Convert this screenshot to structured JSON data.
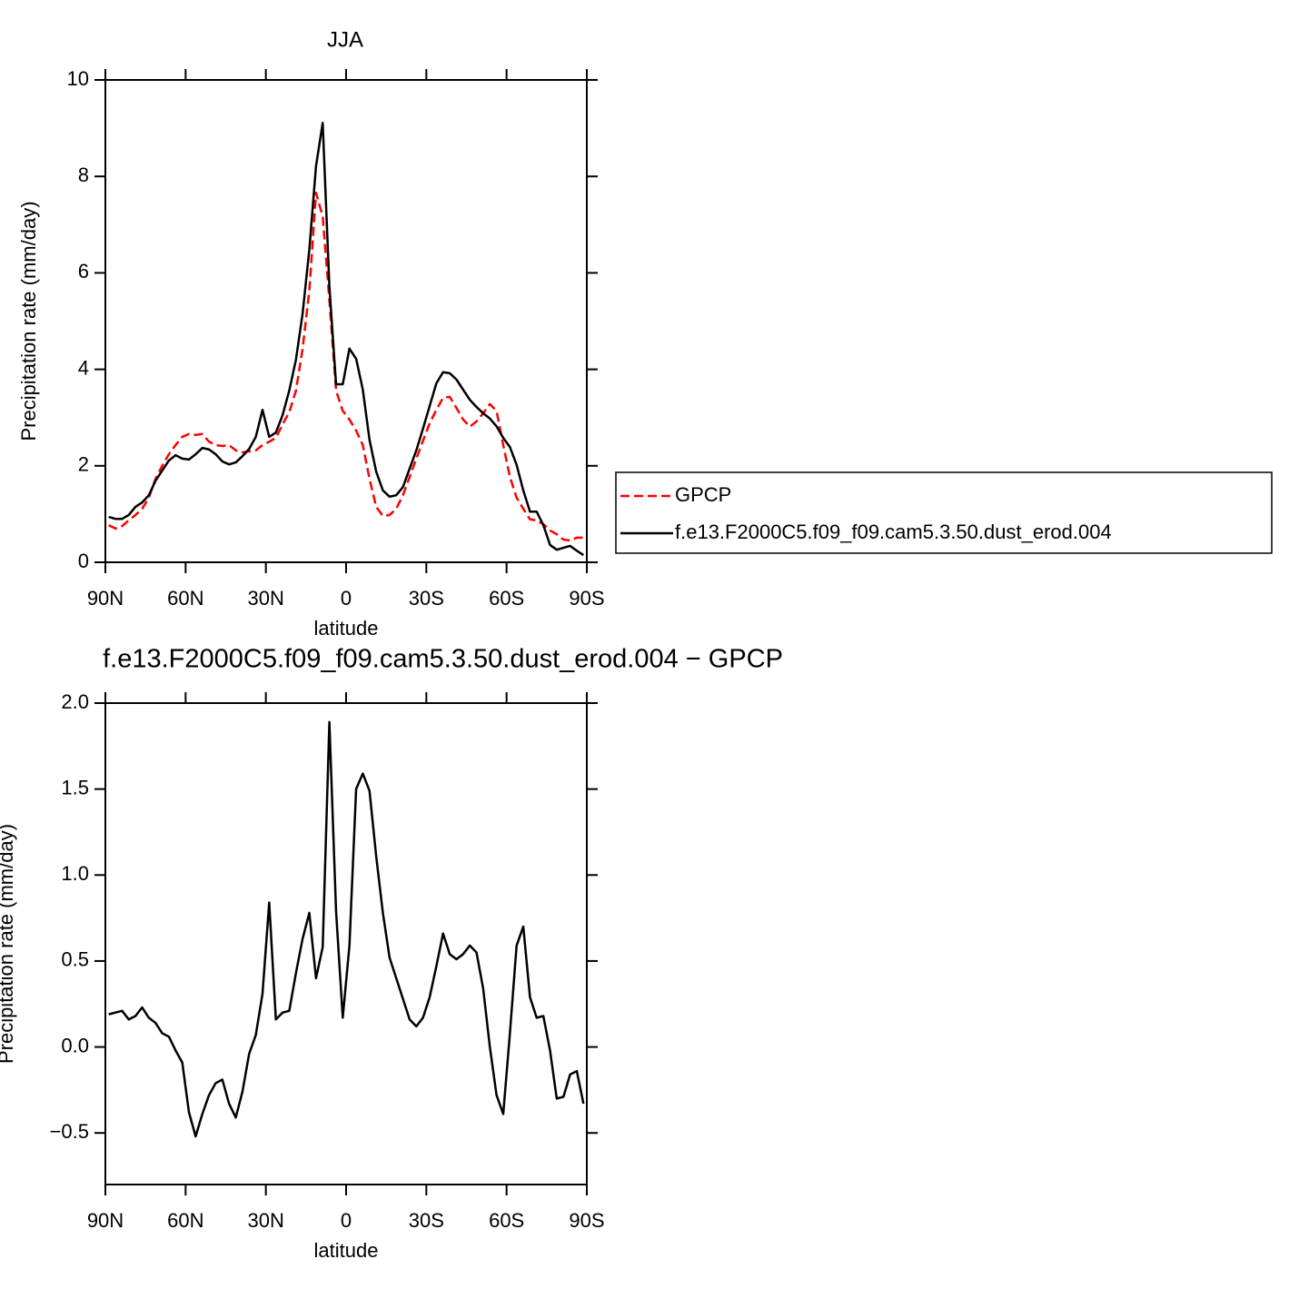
{
  "chart_data": [
    {
      "type": "line",
      "title": "JJA",
      "ylabel": "Precipitation rate (mm/day)",
      "xlabel": "latitude",
      "x": [
        88.75,
        86.25,
        83.75,
        81.25,
        78.75,
        76.25,
        73.75,
        71.25,
        68.75,
        66.25,
        63.75,
        61.25,
        58.75,
        56.25,
        53.75,
        51.25,
        48.75,
        46.25,
        43.75,
        41.25,
        38.75,
        36.25,
        33.75,
        31.25,
        28.75,
        26.25,
        23.75,
        21.25,
        18.75,
        16.25,
        13.75,
        11.25,
        8.75,
        6.25,
        3.75,
        1.25,
        -1.25,
        -3.75,
        -6.25,
        -8.75,
        -11.25,
        -13.75,
        -16.25,
        -18.75,
        -21.25,
        -23.75,
        -26.25,
        -28.75,
        -31.25,
        -33.75,
        -36.25,
        -38.75,
        -41.25,
        -43.75,
        -46.25,
        -48.75,
        -51.25,
        -53.75,
        -56.25,
        -58.75,
        -61.25,
        -63.75,
        -66.25,
        -68.75,
        -71.25,
        -73.75,
        -76.25,
        -78.75,
        -81.25,
        -83.75,
        -86.25,
        -88.75
      ],
      "xlim": [
        90,
        -90
      ],
      "xticks": [
        {
          "value": 90,
          "label": "90N"
        },
        {
          "value": 60,
          "label": "60N"
        },
        {
          "value": 30,
          "label": "30N"
        },
        0,
        {
          "value": -30,
          "label": "30S"
        },
        {
          "value": -60,
          "label": "60S"
        },
        {
          "value": -90,
          "label": "90S"
        }
      ],
      "ylim": [
        0,
        10
      ],
      "yticks": [
        0,
        2,
        4,
        6,
        8,
        10
      ],
      "legend": "right",
      "series": [
        {
          "name": "GPCP",
          "color": "#ff0000",
          "linestyle": "dashed",
          "values": [
            0.77,
            0.7,
            0.75,
            0.87,
            0.98,
            1.11,
            1.34,
            1.73,
            2.0,
            2.24,
            2.43,
            2.6,
            2.66,
            2.64,
            2.66,
            2.5,
            2.43,
            2.41,
            2.43,
            2.32,
            2.28,
            2.3,
            2.32,
            2.43,
            2.5,
            2.58,
            2.86,
            3.11,
            3.56,
            4.43,
            5.63,
            7.66,
            7.17,
            5.44,
            3.56,
            3.14,
            2.96,
            2.73,
            2.43,
            1.73,
            1.15,
            0.96,
            0.98,
            1.11,
            1.39,
            1.77,
            2.15,
            2.52,
            2.88,
            3.16,
            3.41,
            3.43,
            3.2,
            2.96,
            2.81,
            2.92,
            3.09,
            3.28,
            3.14,
            2.43,
            1.77,
            1.34,
            1.11,
            0.89,
            0.87,
            0.79,
            0.66,
            0.58,
            0.47,
            0.45,
            0.51,
            0.51
          ]
        },
        {
          "name": "f.e13.F2000C5.f09_f09.cam5.3.50.dust_erod.004",
          "color": "#000000",
          "linestyle": "solid",
          "values": [
            0.94,
            0.9,
            0.9,
            0.98,
            1.15,
            1.24,
            1.39,
            1.69,
            1.9,
            2.11,
            2.22,
            2.15,
            2.13,
            2.24,
            2.37,
            2.34,
            2.24,
            2.09,
            2.03,
            2.07,
            2.2,
            2.35,
            2.6,
            3.16,
            2.6,
            2.69,
            3.05,
            3.56,
            4.2,
            5.16,
            6.48,
            8.21,
            9.11,
            5.72,
            3.69,
            3.69,
            4.43,
            4.22,
            3.58,
            2.54,
            1.88,
            1.49,
            1.36,
            1.39,
            1.56,
            1.94,
            2.32,
            2.77,
            3.24,
            3.71,
            3.94,
            3.92,
            3.79,
            3.58,
            3.37,
            3.22,
            3.09,
            2.98,
            2.82,
            2.58,
            2.39,
            2.02,
            1.49,
            1.05,
            1.05,
            0.77,
            0.36,
            0.26,
            0.3,
            0.34,
            0.24,
            0.15
          ]
        }
      ]
    },
    {
      "type": "line",
      "title": "f.e13.F2000C5.f09_f09.cam5.3.50.dust_erod.004 − GPCP",
      "ylabel": "Precipitation rate (mm/day)",
      "xlabel": "latitude",
      "x": [
        88.75,
        86.25,
        83.75,
        81.25,
        78.75,
        76.25,
        73.75,
        71.25,
        68.75,
        66.25,
        63.75,
        61.25,
        58.75,
        56.25,
        53.75,
        51.25,
        48.75,
        46.25,
        43.75,
        41.25,
        38.75,
        36.25,
        33.75,
        31.25,
        28.75,
        26.25,
        23.75,
        21.25,
        18.75,
        16.25,
        13.75,
        11.25,
        8.75,
        6.25,
        3.75,
        1.25,
        -1.25,
        -3.75,
        -6.25,
        -8.75,
        -11.25,
        -13.75,
        -16.25,
        -18.75,
        -21.25,
        -23.75,
        -26.25,
        -28.75,
        -31.25,
        -33.75,
        -36.25,
        -38.75,
        -41.25,
        -43.75,
        -46.25,
        -48.75,
        -51.25,
        -53.75,
        -56.25,
        -58.75,
        -61.25,
        -63.75,
        -66.25,
        -68.75,
        -71.25,
        -73.75,
        -76.25,
        -78.75,
        -81.25,
        -83.75,
        -86.25,
        -88.75
      ],
      "xlim": [
        90,
        -90
      ],
      "xticks": [
        {
          "value": 90,
          "label": "90N"
        },
        {
          "value": 60,
          "label": "60N"
        },
        {
          "value": 30,
          "label": "30N"
        },
        0,
        {
          "value": -30,
          "label": "30S"
        },
        {
          "value": -60,
          "label": "60S"
        },
        {
          "value": -90,
          "label": "90S"
        }
      ],
      "ylim": [
        -0.8,
        2.0
      ],
      "yticks": [
        {
          "value": -0.5,
          "label": "−0.5"
        },
        {
          "value": 0,
          "label": "0.0"
        },
        0.5,
        {
          "value": 1,
          "label": "1.0"
        },
        1.5,
        {
          "value": 2,
          "label": "2.0"
        }
      ],
      "series": [
        {
          "color": "#000000",
          "linestyle": "solid",
          "values": [
            0.19,
            0.2,
            0.21,
            0.16,
            0.18,
            0.23,
            0.17,
            0.14,
            0.08,
            0.06,
            -0.02,
            -0.09,
            -0.38,
            -0.52,
            -0.39,
            -0.28,
            -0.21,
            -0.19,
            -0.33,
            -0.41,
            -0.26,
            -0.04,
            0.07,
            0.31,
            0.84,
            0.16,
            0.2,
            0.21,
            0.43,
            0.63,
            0.78,
            0.4,
            0.58,
            1.89,
            0.79,
            0.17,
            0.59,
            1.5,
            1.59,
            1.49,
            1.11,
            0.78,
            0.52,
            0.4,
            0.28,
            0.16,
            0.12,
            0.17,
            0.29,
            0.47,
            0.66,
            0.54,
            0.51,
            0.54,
            0.59,
            0.55,
            0.34,
            0.0,
            -0.28,
            -0.39,
            0.08,
            0.59,
            0.7,
            0.29,
            0.17,
            0.18,
            -0.02,
            -0.3,
            -0.29,
            -0.16,
            -0.14,
            -0.33
          ]
        }
      ]
    }
  ]
}
